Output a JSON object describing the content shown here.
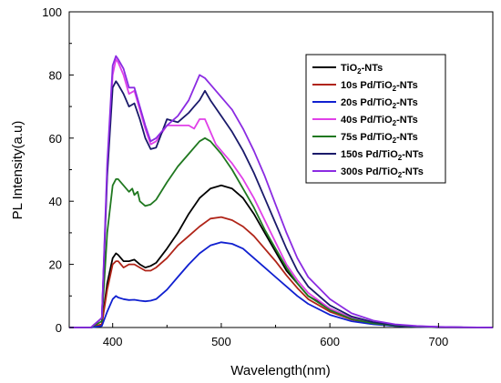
{
  "chart_data": {
    "type": "line",
    "xlabel": "Wavelength(nm)",
    "ylabel": "PL Intensity(a.u)",
    "xlim": [
      360,
      750
    ],
    "ylim": [
      0,
      100
    ],
    "xticks": [
      400,
      500,
      600,
      700
    ],
    "yticks": [
      0,
      20,
      40,
      60,
      80,
      100
    ],
    "grid": false,
    "legend_position": "top-right",
    "series": [
      {
        "name": "TiO2-NTs",
        "label_main": "TiO",
        "label_sub": "2",
        "label_rest": "-NTs",
        "color": "#000000",
        "x": [
          360,
          380,
          390,
          395,
          400,
          403,
          405,
          410,
          415,
          420,
          425,
          430,
          435,
          440,
          450,
          460,
          470,
          480,
          490,
          500,
          510,
          520,
          530,
          540,
          550,
          560,
          570,
          580,
          600,
          620,
          640,
          660,
          680,
          700,
          720,
          750
        ],
        "y": [
          0,
          0,
          1,
          14,
          22,
          23.5,
          23,
          21,
          21,
          21.5,
          20,
          19,
          19.5,
          20.5,
          25,
          30,
          36,
          41,
          44,
          45,
          44,
          41,
          36,
          30,
          24,
          18,
          14,
          10,
          6,
          3,
          1.5,
          0.7,
          0.3,
          0.1,
          0,
          0
        ]
      },
      {
        "name": "10s Pd/TiO2-NTs",
        "label_main": "10s Pd/TiO",
        "label_sub": "2",
        "label_rest": "-NTs",
        "color": "#b02418",
        "x": [
          360,
          380,
          390,
          395,
          400,
          403,
          405,
          410,
          415,
          420,
          425,
          430,
          435,
          440,
          450,
          460,
          470,
          480,
          490,
          500,
          510,
          520,
          530,
          540,
          550,
          560,
          570,
          580,
          600,
          620,
          640,
          660,
          680,
          700,
          720,
          750
        ],
        "y": [
          0,
          0,
          1,
          12,
          20,
          21,
          21,
          19,
          20,
          20,
          19,
          18,
          18,
          19,
          22,
          26,
          29,
          32,
          34.5,
          35,
          34,
          32,
          29,
          25,
          21,
          16.5,
          12.5,
          9,
          5,
          2.5,
          1.2,
          0.5,
          0.2,
          0.1,
          0,
          0
        ]
      },
      {
        "name": "20s Pd/TiO2-NTs",
        "label_main": "20s Pd/TiO",
        "label_sub": "2",
        "label_rest": "-NTs",
        "color": "#1020d0",
        "x": [
          360,
          380,
          390,
          395,
          400,
          403,
          405,
          410,
          415,
          420,
          425,
          430,
          435,
          440,
          450,
          460,
          470,
          480,
          490,
          500,
          510,
          520,
          530,
          540,
          550,
          560,
          570,
          580,
          600,
          620,
          640,
          660,
          680,
          700,
          720,
          750
        ],
        "y": [
          0,
          0,
          0.5,
          5,
          9,
          10,
          9.5,
          9,
          8.7,
          8.8,
          8.5,
          8.3,
          8.5,
          9,
          12,
          16,
          20,
          23.5,
          26,
          27,
          26.5,
          25,
          22,
          19,
          16,
          13,
          10,
          7.5,
          4,
          2,
          1,
          0.5,
          0.2,
          0.1,
          0,
          0
        ]
      },
      {
        "name": "40s Pd/TiO2-NTs",
        "label_main": "40s Pd/TiO",
        "label_sub": "2",
        "label_rest": "-NTs",
        "color": "#e040e8",
        "x": [
          360,
          380,
          390,
          395,
          400,
          403,
          405,
          410,
          415,
          420,
          425,
          430,
          435,
          440,
          450,
          460,
          470,
          475,
          480,
          485,
          490,
          495,
          500,
          510,
          520,
          530,
          540,
          550,
          560,
          570,
          580,
          600,
          620,
          640,
          660,
          680,
          700,
          720,
          750
        ],
        "y": [
          0,
          0,
          3,
          50,
          80,
          85,
          84,
          80,
          74,
          75,
          69,
          63,
          58,
          59,
          64,
          64,
          64,
          63,
          66,
          66,
          62,
          58,
          56,
          52,
          47,
          41,
          34,
          27,
          20,
          15,
          11,
          6,
          3,
          1.5,
          0.7,
          0.3,
          0.1,
          0,
          0
        ]
      },
      {
        "name": "75s Pd/TiO2-NTs",
        "label_main": "75s Pd/TiO",
        "label_sub": "2",
        "label_rest": "-NTs",
        "color": "#207820",
        "x": [
          360,
          380,
          390,
          395,
          400,
          403,
          405,
          410,
          415,
          418,
          420,
          423,
          425,
          430,
          435,
          440,
          450,
          460,
          470,
          480,
          485,
          490,
          500,
          510,
          520,
          530,
          540,
          550,
          560,
          570,
          580,
          600,
          620,
          640,
          660,
          680,
          700,
          720,
          750
        ],
        "y": [
          0,
          0,
          2,
          30,
          45,
          47,
          47,
          45,
          43,
          44,
          42,
          43,
          40,
          38.5,
          39,
          40.5,
          46,
          51,
          55,
          59,
          60,
          59,
          55,
          50,
          44,
          38,
          31,
          25,
          19,
          14,
          10,
          5.5,
          2.7,
          1.3,
          0.6,
          0.3,
          0.1,
          0,
          0
        ]
      },
      {
        "name": "150s Pd/TiO2-NTs",
        "label_main": "150s Pd/TiO",
        "label_sub": "2",
        "label_rest": "-NTs",
        "color": "#1a1a6a",
        "x": [
          360,
          380,
          390,
          395,
          400,
          403,
          405,
          410,
          415,
          420,
          425,
          430,
          435,
          440,
          450,
          460,
          470,
          475,
          480,
          485,
          490,
          500,
          510,
          520,
          530,
          540,
          550,
          560,
          570,
          580,
          600,
          620,
          640,
          660,
          680,
          700,
          720,
          750
        ],
        "y": [
          0,
          0,
          3,
          48,
          76,
          78,
          77,
          74,
          70,
          71,
          66,
          60,
          56.5,
          57,
          66,
          65,
          68,
          70,
          72,
          75,
          72,
          67,
          62,
          56,
          49,
          41,
          33,
          25,
          18,
          13,
          7,
          3.5,
          1.7,
          0.8,
          0.4,
          0.2,
          0.1,
          0
        ]
      },
      {
        "name": "300s Pd/TiO2-NTs",
        "label_main": "300s Pd/TiO",
        "label_sub": "2",
        "label_rest": "-NTs",
        "color": "#8b2be2",
        "x": [
          360,
          380,
          390,
          395,
          400,
          403,
          405,
          410,
          415,
          420,
          425,
          430,
          435,
          440,
          450,
          460,
          470,
          480,
          485,
          490,
          500,
          510,
          520,
          530,
          540,
          550,
          560,
          570,
          580,
          600,
          620,
          640,
          660,
          680,
          700,
          720,
          750
        ],
        "y": [
          0,
          0,
          3,
          52,
          83,
          86,
          85,
          82,
          76,
          76,
          70,
          64,
          59,
          60,
          64,
          67,
          72,
          80,
          79,
          77,
          73,
          69,
          63,
          56,
          48,
          39,
          30,
          22,
          16,
          9,
          4.5,
          2.2,
          1,
          0.5,
          0.2,
          0.1,
          0
        ]
      }
    ]
  }
}
